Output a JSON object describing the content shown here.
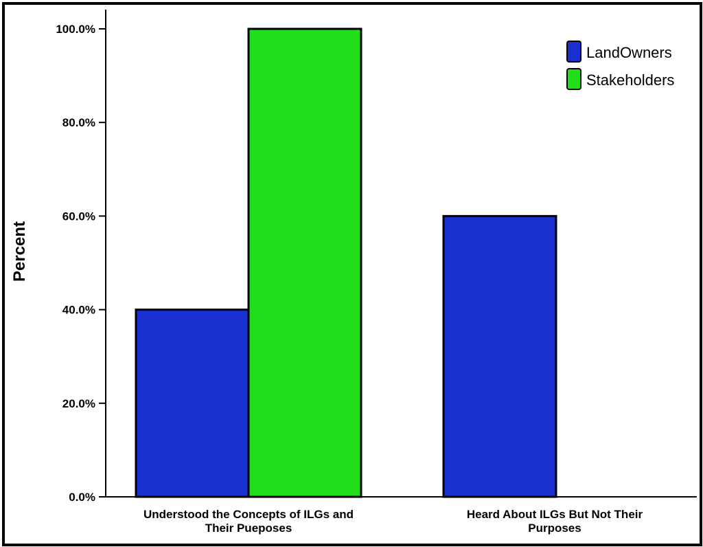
{
  "chart_data": {
    "type": "bar",
    "categories": [
      [
        "Understood the Concepts of ILGs and",
        "Their Pueposes"
      ],
      [
        "Heard About ILGs But Not Their",
        "Purposes"
      ]
    ],
    "series": [
      {
        "name": "LandOwners",
        "color": "#1a2fd0",
        "values": [
          40,
          60
        ]
      },
      {
        "name": "Stakeholders",
        "color": "#22dd1a",
        "values": [
          100,
          null
        ]
      }
    ],
    "ylabel": "Percent",
    "xlabel": "",
    "ylim": [
      0,
      100
    ],
    "yticks": [
      0,
      20,
      40,
      60,
      80,
      100
    ],
    "ytick_labels": [
      "0.0%",
      "20.0%",
      "40.0%",
      "60.0%",
      "80.0%",
      "100.0%"
    ],
    "legend_position": "top-right",
    "grid": false
  }
}
